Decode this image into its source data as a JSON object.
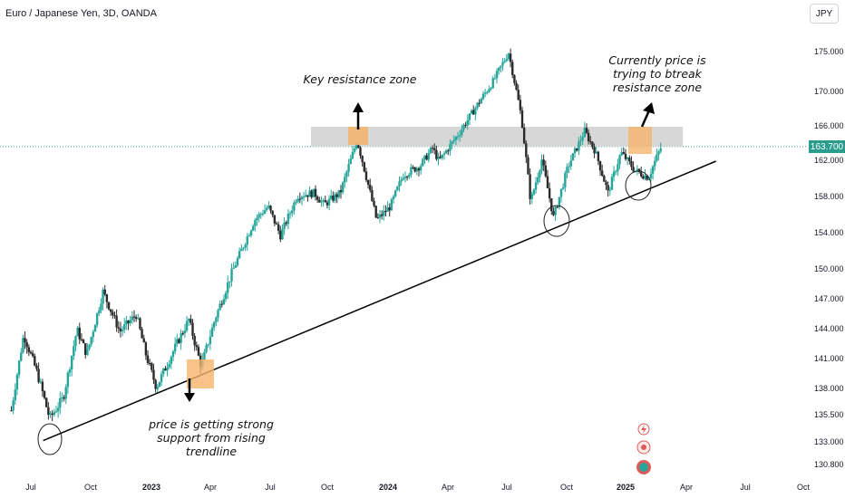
{
  "header": {
    "title": "Euro / Japanese Yen, 3D, OANDA",
    "currency_button": "JPY"
  },
  "last_price": {
    "label": "163.700",
    "value": 163.7,
    "color": "#26a69a"
  },
  "annotations": {
    "resistance": "Key resistance zone",
    "current": [
      "Currently price is",
      "trying  to btreak",
      "resistance zone"
    ],
    "support": [
      "price is getting strong",
      "support from rising",
      "trendline"
    ]
  },
  "colors": {
    "up": "#26a69a",
    "down": "#2b2b2b",
    "zone": "#d3d3d3",
    "box": "#f5b46a",
    "trendline": "#000000"
  },
  "icons": [
    "lightning-icon",
    "target-icon",
    "record-icon"
  ],
  "chart_data": {
    "type": "candlestick",
    "title": "Euro / Japanese Yen, 3D, OANDA",
    "y_ticks": [
      "175.000",
      "170.000",
      "166.000",
      "162.000",
      "158.000",
      "154.000",
      "150.000",
      "147.000",
      "144.000",
      "141.000",
      "138.000",
      "135.500",
      "133.000",
      "130.800"
    ],
    "x_ticks": [
      {
        "label": "Jul",
        "bold": false
      },
      {
        "label": "Oct",
        "bold": false
      },
      {
        "label": "2023",
        "bold": true
      },
      {
        "label": "Apr",
        "bold": false
      },
      {
        "label": "Jul",
        "bold": false
      },
      {
        "label": "Oct",
        "bold": false
      },
      {
        "label": "2024",
        "bold": true
      },
      {
        "label": "Apr",
        "bold": false
      },
      {
        "label": "Jul",
        "bold": false
      },
      {
        "label": "Oct",
        "bold": false
      },
      {
        "label": "2025",
        "bold": true
      },
      {
        "label": "Apr",
        "bold": false
      },
      {
        "label": "Jul",
        "bold": false
      },
      {
        "label": "Oct",
        "bold": false
      }
    ],
    "resistance_zone": [
      163.7,
      166.0
    ],
    "trendline": {
      "from": [
        "2022-07-20",
        133.2
      ],
      "to": [
        "2025-05-20",
        162.0
      ]
    },
    "path": [
      [
        "2022-06-01",
        136.0
      ],
      [
        "2022-06-20",
        143.5
      ],
      [
        "2022-07-10",
        139.8
      ],
      [
        "2022-07-30",
        135.2
      ],
      [
        "2022-08-20",
        137.2
      ],
      [
        "2022-09-10",
        144.0
      ],
      [
        "2022-09-25",
        141.5
      ],
      [
        "2022-10-20",
        147.8
      ],
      [
        "2022-11-15",
        143.8
      ],
      [
        "2022-12-10",
        145.5
      ],
      [
        "2022-12-25",
        141.5
      ],
      [
        "2023-01-10",
        138.2
      ],
      [
        "2023-02-10",
        142.5
      ],
      [
        "2023-03-01",
        145.0
      ],
      [
        "2023-03-20",
        140.3
      ],
      [
        "2023-04-10",
        145.0
      ],
      [
        "2023-05-05",
        149.5
      ],
      [
        "2023-06-10",
        155.5
      ],
      [
        "2023-07-01",
        157.0
      ],
      [
        "2023-07-20",
        153.8
      ],
      [
        "2023-08-15",
        158.2
      ],
      [
        "2023-09-10",
        158.5
      ],
      [
        "2023-09-25",
        157.2
      ],
      [
        "2023-10-20",
        158.5
      ],
      [
        "2023-11-15",
        164.4
      ],
      [
        "2023-12-05",
        158.5
      ],
      [
        "2023-12-15",
        155.5
      ],
      [
        "2024-01-05",
        157.0
      ],
      [
        "2024-01-25",
        160.5
      ],
      [
        "2024-02-20",
        161.5
      ],
      [
        "2024-03-10",
        163.5
      ],
      [
        "2024-03-20",
        162.0
      ],
      [
        "2024-04-20",
        165.3
      ],
      [
        "2024-05-15",
        168.2
      ],
      [
        "2024-06-10",
        171.2
      ],
      [
        "2024-07-05",
        175.0
      ],
      [
        "2024-07-25",
        167.0
      ],
      [
        "2024-08-08",
        157.5
      ],
      [
        "2024-08-25",
        162.2
      ],
      [
        "2024-09-12",
        155.8
      ],
      [
        "2024-10-05",
        161.5
      ],
      [
        "2024-10-30",
        165.5
      ],
      [
        "2024-11-15",
        163.2
      ],
      [
        "2024-12-05",
        158.5
      ],
      [
        "2024-12-25",
        163.0
      ],
      [
        "2025-01-15",
        161.0
      ],
      [
        "2025-02-05",
        160.2
      ],
      [
        "2025-02-25",
        163.7
      ]
    ]
  }
}
